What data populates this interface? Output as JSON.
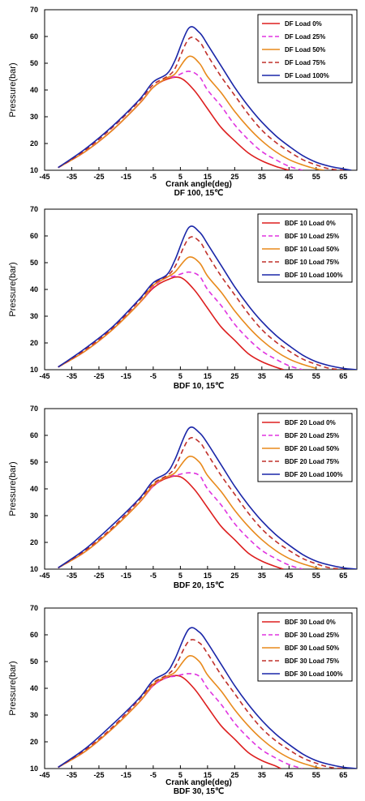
{
  "figure": {
    "colors": {
      "load_0": "#dd1f1f",
      "load_25": "#e034e0",
      "load_50": "#e88a1c",
      "load_75": "#c0302a",
      "load_100": "#1a26a8"
    },
    "styles": [
      "solid",
      "dashed",
      "solid",
      "dashed",
      "solid"
    ]
  },
  "chart_data": [
    {
      "type": "line",
      "xlabel": "Crank angle(deg)",
      "ylabel": "Pressure(bar)",
      "caption": "DF 100, 15℃",
      "xlim": [
        -45,
        70
      ],
      "ylim": [
        10,
        70
      ],
      "xticks": [
        -45,
        -35,
        -25,
        -15,
        -5,
        5,
        15,
        25,
        35,
        45,
        55,
        65
      ],
      "yticks": [
        10,
        20,
        30,
        40,
        50,
        60,
        70
      ],
      "legend_position": "top-right",
      "series": [
        {
          "name": "DF Load 0%",
          "x": [
            -40,
            -30,
            -20,
            -10,
            -5,
            0,
            5,
            10,
            15,
            20,
            25,
            30,
            35,
            40,
            45
          ],
          "y": [
            11,
            17,
            25,
            35,
            41,
            44,
            44.5,
            40,
            33,
            26,
            21,
            16.5,
            13.5,
            11.5,
            10
          ]
        },
        {
          "name": "DF Load 25%",
          "x": [
            -40,
            -30,
            -20,
            -10,
            -5,
            0,
            3,
            8,
            12,
            15,
            20,
            25,
            30,
            35,
            40,
            45,
            50
          ],
          "y": [
            11,
            17,
            25,
            35,
            41,
            44.5,
            45,
            47,
            45,
            40,
            34,
            27,
            21.5,
            17,
            14,
            11.5,
            10
          ]
        },
        {
          "name": "DF Load 50%",
          "x": [
            -40,
            -30,
            -20,
            -10,
            -5,
            0,
            3,
            8,
            12,
            15,
            20,
            25,
            30,
            35,
            40,
            45,
            50,
            55,
            58
          ],
          "y": [
            11,
            17,
            25,
            35,
            41,
            44.5,
            46,
            52.5,
            50,
            45,
            39,
            32,
            26,
            21,
            17,
            14,
            12,
            10.5,
            10
          ]
        },
        {
          "name": "DF Load 75%",
          "x": [
            -40,
            -30,
            -20,
            -10,
            -5,
            0,
            3,
            8,
            12,
            15,
            20,
            25,
            30,
            35,
            40,
            45,
            50,
            55,
            60,
            65
          ],
          "y": [
            11,
            17.5,
            26,
            36,
            42,
            45,
            48,
            59,
            58,
            53,
            45,
            38,
            31,
            25,
            20.5,
            17,
            14,
            12,
            10.5,
            10
          ]
        },
        {
          "name": "DF Load 100%",
          "x": [
            -40,
            -30,
            -20,
            -10,
            -5,
            0,
            3,
            8,
            12,
            15,
            20,
            25,
            30,
            35,
            40,
            45,
            50,
            55,
            60,
            65,
            68
          ],
          "y": [
            11,
            18,
            26.5,
            36.5,
            43,
            46,
            51,
            63,
            61.5,
            57,
            49,
            41,
            34,
            28,
            23,
            19,
            15.5,
            13,
            11.5,
            10.5,
            10
          ]
        }
      ]
    },
    {
      "type": "line",
      "xlabel": "",
      "ylabel": "Pressure(bar)",
      "caption": "BDF 10, 15℃",
      "xlim": [
        -45,
        70
      ],
      "ylim": [
        10,
        70
      ],
      "xticks": [
        -45,
        -35,
        -25,
        -15,
        -5,
        5,
        15,
        25,
        35,
        45,
        55,
        65
      ],
      "yticks": [
        10,
        20,
        30,
        40,
        50,
        60,
        70
      ],
      "legend_position": "top-right",
      "series": [
        {
          "name": "BDF 10 Load 0%",
          "x": [
            -40,
            -30,
            -20,
            -10,
            -5,
            0,
            5,
            10,
            15,
            20,
            25,
            30,
            35,
            40,
            43
          ],
          "y": [
            11,
            17,
            25,
            35,
            40.5,
            43.5,
            44.5,
            40,
            33,
            26,
            21,
            16,
            13,
            11,
            10
          ]
        },
        {
          "name": "BDF 10 Load 25%",
          "x": [
            -40,
            -30,
            -20,
            -10,
            -5,
            0,
            3,
            8,
            12,
            15,
            20,
            25,
            30,
            35,
            40,
            45,
            50
          ],
          "y": [
            11,
            17,
            25,
            35,
            41,
            44.5,
            45,
            46.5,
            45,
            40,
            34,
            27,
            21.5,
            17,
            14,
            11.5,
            10
          ]
        },
        {
          "name": "BDF 10 Load 50%",
          "x": [
            -40,
            -30,
            -20,
            -10,
            -5,
            0,
            3,
            8,
            12,
            15,
            20,
            25,
            30,
            35,
            40,
            45,
            50,
            55
          ],
          "y": [
            11,
            17,
            25,
            35,
            41.5,
            44.5,
            46.5,
            52,
            50,
            45,
            39,
            32,
            26,
            21,
            17,
            14,
            12,
            10.5
          ]
        },
        {
          "name": "BDF 10 Load 75%",
          "x": [
            -40,
            -30,
            -20,
            -10,
            -5,
            0,
            3,
            8,
            12,
            15,
            20,
            25,
            30,
            35,
            40,
            45,
            50,
            55,
            60,
            65
          ],
          "y": [
            11,
            17.5,
            25.5,
            36,
            42,
            45,
            48.5,
            59,
            58,
            53,
            45,
            38,
            31,
            25,
            20.5,
            17,
            14,
            12,
            10.5,
            10
          ]
        },
        {
          "name": "BDF 10 Load 100%",
          "x": [
            -40,
            -30,
            -20,
            -10,
            -5,
            0,
            3,
            8,
            12,
            15,
            20,
            25,
            30,
            35,
            40,
            45,
            50,
            55,
            60,
            65,
            70
          ],
          "y": [
            11,
            18,
            26,
            36.5,
            42.5,
            45.5,
            51,
            63,
            61.5,
            57,
            49,
            41,
            34,
            28,
            23,
            19,
            15.5,
            13,
            11.5,
            10.5,
            10
          ]
        }
      ]
    },
    {
      "type": "line",
      "xlabel": "",
      "ylabel": "Pressure(bar)",
      "caption": "BDF 20, 15℃",
      "xlim": [
        -45,
        70
      ],
      "ylim": [
        10,
        70
      ],
      "xticks": [
        -45,
        -35,
        -25,
        -15,
        -5,
        5,
        15,
        25,
        35,
        45,
        55,
        65
      ],
      "yticks": [
        10,
        20,
        30,
        40,
        50,
        60,
        70
      ],
      "legend_position": "top-right",
      "series": [
        {
          "name": "BDF 20 Load 0%",
          "x": [
            -40,
            -30,
            -20,
            -10,
            -5,
            0,
            5,
            10,
            15,
            20,
            25,
            30,
            35,
            40,
            43
          ],
          "y": [
            10.5,
            16.5,
            25,
            35,
            41,
            44,
            44.5,
            40,
            33,
            26,
            21,
            16,
            13,
            11,
            10
          ]
        },
        {
          "name": "BDF 20 Load 25%",
          "x": [
            -40,
            -30,
            -20,
            -10,
            -5,
            0,
            3,
            8,
            12,
            15,
            20,
            25,
            30,
            35,
            40,
            45,
            50
          ],
          "y": [
            10.5,
            16.5,
            25,
            35,
            41,
            44.5,
            45,
            46,
            45,
            40,
            34,
            27,
            21.5,
            17,
            14,
            11.5,
            10
          ]
        },
        {
          "name": "BDF 20 Load 50%",
          "x": [
            -40,
            -30,
            -20,
            -10,
            -5,
            0,
            3,
            8,
            12,
            15,
            20,
            25,
            30,
            35,
            40,
            45,
            50,
            55,
            57
          ],
          "y": [
            10.5,
            16.5,
            25,
            35,
            41.5,
            44.5,
            46,
            52,
            50,
            45,
            39,
            32,
            26,
            21,
            17,
            14,
            12,
            10.5,
            10
          ]
        },
        {
          "name": "BDF 20 Load 75%",
          "x": [
            -40,
            -30,
            -20,
            -10,
            -5,
            0,
            3,
            8,
            12,
            15,
            20,
            25,
            30,
            35,
            40,
            45,
            50,
            55,
            60,
            65
          ],
          "y": [
            10.5,
            17,
            25.5,
            36,
            42,
            45,
            48,
            58.5,
            57.5,
            53,
            45,
            38,
            31,
            25,
            20.5,
            17,
            14,
            12,
            10.5,
            10
          ]
        },
        {
          "name": "BDF 20 Load 100%",
          "x": [
            -40,
            -30,
            -20,
            -10,
            -5,
            0,
            3,
            8,
            12,
            15,
            20,
            25,
            30,
            35,
            40,
            45,
            50,
            55,
            60,
            65,
            70
          ],
          "y": [
            10.5,
            17.5,
            26.5,
            36.5,
            43,
            46,
            51,
            62.5,
            61,
            57,
            49,
            41,
            34,
            28,
            23,
            19,
            15.5,
            13,
            11.5,
            10.5,
            10
          ]
        }
      ]
    },
    {
      "type": "line",
      "xlabel": "Crank angle(deg)",
      "ylabel": "Pressure(bar)",
      "caption": "BDF 30, 15℃",
      "xlim": [
        -45,
        70
      ],
      "ylim": [
        10,
        70
      ],
      "xticks": [
        -45,
        -35,
        -25,
        -15,
        -5,
        5,
        15,
        25,
        35,
        45,
        55,
        65
      ],
      "yticks": [
        10,
        20,
        30,
        40,
        50,
        60,
        70
      ],
      "legend_position": "top-right",
      "series": [
        {
          "name": "BDF 30 Load 0%",
          "x": [
            -40,
            -30,
            -20,
            -10,
            -5,
            0,
            5,
            10,
            15,
            20,
            25,
            30,
            35,
            40,
            42
          ],
          "y": [
            10.5,
            16.5,
            25,
            35,
            41,
            44,
            44.5,
            40,
            33,
            26,
            21,
            16,
            13,
            11,
            10
          ]
        },
        {
          "name": "BDF 30 Load 25%",
          "x": [
            -40,
            -30,
            -20,
            -10,
            -5,
            0,
            3,
            8,
            12,
            15,
            20,
            25,
            30,
            35,
            40,
            45,
            50
          ],
          "y": [
            10.5,
            16.5,
            25,
            35,
            41,
            44,
            44.5,
            45.5,
            44.5,
            40,
            34,
            27,
            21.5,
            17,
            14,
            11.5,
            10
          ]
        },
        {
          "name": "BDF 30 Load 50%",
          "x": [
            -40,
            -30,
            -20,
            -10,
            -5,
            0,
            3,
            8,
            12,
            15,
            20,
            25,
            30,
            35,
            40,
            45,
            50,
            55,
            57
          ],
          "y": [
            10.5,
            16.5,
            25,
            35,
            41.5,
            44.5,
            46,
            52,
            50,
            45,
            39,
            32,
            26,
            21,
            17,
            14,
            12,
            10.5,
            10
          ]
        },
        {
          "name": "BDF 30 Load 75%",
          "x": [
            -40,
            -30,
            -20,
            -10,
            -5,
            0,
            3,
            8,
            12,
            15,
            20,
            25,
            30,
            35,
            40,
            45,
            50,
            55,
            60,
            65
          ],
          "y": [
            10.5,
            17,
            25.5,
            36,
            42,
            45,
            48,
            57.5,
            57,
            53,
            45,
            38,
            31,
            25,
            20.5,
            17,
            14,
            12,
            10.5,
            10
          ]
        },
        {
          "name": "BDF 30 Load 100%",
          "x": [
            -40,
            -30,
            -20,
            -10,
            -5,
            0,
            3,
            8,
            12,
            15,
            20,
            25,
            30,
            35,
            40,
            45,
            50,
            55,
            60,
            65,
            70
          ],
          "y": [
            10.5,
            17.5,
            26.5,
            36.5,
            43,
            46,
            51,
            62,
            61,
            57,
            49,
            41,
            34,
            28,
            23,
            19,
            15.5,
            13,
            11.5,
            10.5,
            10
          ]
        }
      ]
    }
  ]
}
